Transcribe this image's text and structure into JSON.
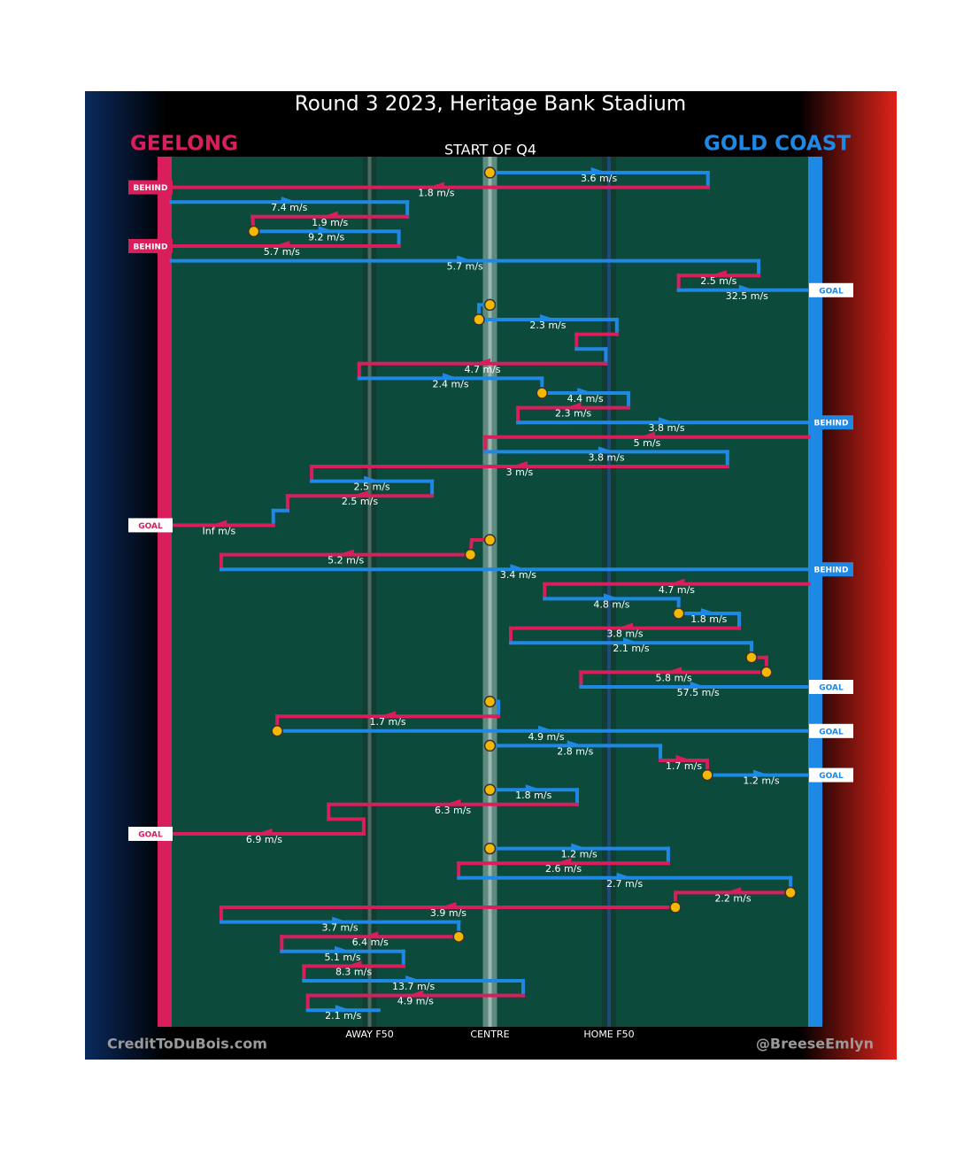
{
  "title": "Round 3 2023, Heritage Bank Stadium",
  "teams": [
    {
      "name": "GEELONG",
      "color": "#d81e5b"
    },
    {
      "name": "GOLD COAST",
      "color": "#1e88e5"
    }
  ],
  "subtitle": "START OF Q4",
  "field_lines": [
    {
      "label": "AWAY F50",
      "x": 31.5
    },
    {
      "label": "CENTRE",
      "x": 50
    },
    {
      "label": "HOME F50",
      "x": 68.3
    }
  ],
  "credit_left": "CreditToDuBois.com",
  "credit_right": "@BreeseEmlyn",
  "chains": [
    {
      "moves": [
        {
          "color": "#1e88e5",
          "from": 50,
          "to": 83.5,
          "label": "3.6 m/s",
          "stoppage": true
        },
        {
          "color": "#d81e5b",
          "from": 83.5,
          "to": 0,
          "label": "1.8 m/s"
        }
      ],
      "outcome": "BEHIND"
    },
    {
      "moves": [
        {
          "color": "#1e88e5",
          "from": 1,
          "to": 37.3,
          "label": "7.4 m/s"
        },
        {
          "color": "#d81e5b",
          "from": 37.3,
          "to": 13.5,
          "label": "1.9 m/s"
        },
        {
          "color": "#1e88e5",
          "from": 13.7,
          "to": 36,
          "label": "9.2 m/s",
          "stoppage": true
        },
        {
          "color": "#d81e5b",
          "from": 36,
          "to": 0,
          "label": "5.7 m/s"
        }
      ],
      "outcome": "BEHIND"
    },
    {
      "moves": [
        {
          "color": "#1e88e5",
          "from": 1,
          "to": 91.3,
          "label": "5.7 m/s"
        },
        {
          "color": "#d81e5b",
          "from": 91.3,
          "to": 79,
          "label": "2.5 m/s"
        },
        {
          "color": "#1e88e5",
          "from": 79,
          "to": 100,
          "label": "32.5 m/s"
        }
      ],
      "outcome": "GOAL"
    },
    {
      "moves": [
        {
          "color": "#1e88e5",
          "from": 50,
          "to": 48.3,
          "stoppage": true
        },
        {
          "color": "#1e88e5",
          "from": 48.3,
          "to": 69.5,
          "label": "2.3 m/s",
          "stoppage": true
        },
        {
          "color": "#d81e5b",
          "from": 69.5,
          "to": 63.3
        },
        {
          "color": "#1e88e5",
          "from": 63.3,
          "to": 67.8
        },
        {
          "color": "#d81e5b",
          "from": 67.8,
          "to": 29.9,
          "label": "4.7 m/s"
        },
        {
          "color": "#1e88e5",
          "from": 29.9,
          "to": 58,
          "label": "2.4 m/s"
        },
        {
          "color": "#1e88e5",
          "from": 58,
          "to": 71.3,
          "label": "4.4 m/s",
          "stoppage": true
        },
        {
          "color": "#d81e5b",
          "from": 71.3,
          "to": 54.3,
          "label": "2.3 m/s"
        },
        {
          "color": "#1e88e5",
          "from": 54.3,
          "to": 100,
          "label": "3.8 m/s"
        }
      ],
      "outcome": "BEHIND"
    },
    {
      "moves": [
        {
          "color": "#d81e5b",
          "from": 99,
          "to": 49.3,
          "label": "5 m/s"
        },
        {
          "color": "#1e88e5",
          "from": 49.3,
          "to": 86.5,
          "label": "3.8 m/s"
        },
        {
          "color": "#d81e5b",
          "from": 86.5,
          "to": 22.6,
          "label": "3 m/s"
        },
        {
          "color": "#1e88e5",
          "from": 22.6,
          "to": 41.1,
          "label": "2.5 m/s"
        },
        {
          "color": "#d81e5b",
          "from": 41.1,
          "to": 18.9,
          "label": "2.5 m/s"
        },
        {
          "color": "#1e88e5",
          "from": 18.9,
          "to": 16.7
        },
        {
          "color": "#d81e5b",
          "from": 16.7,
          "to": 0,
          "label": "Inf m/s"
        }
      ],
      "outcome": "GOAL"
    },
    {
      "moves": [
        {
          "color": "#d81e5b",
          "from": 50,
          "to": 47.2,
          "stoppage": true
        },
        {
          "color": "#d81e5b",
          "from": 47,
          "to": 8.7,
          "label": "5.2 m/s",
          "stoppage": true
        },
        {
          "color": "#1e88e5",
          "from": 8.7,
          "to": 100,
          "label": "3.4 m/s"
        }
      ],
      "outcome": "BEHIND"
    },
    {
      "moves": [
        {
          "color": "#d81e5b",
          "from": 99,
          "to": 58.4,
          "label": "4.7 m/s"
        },
        {
          "color": "#1e88e5",
          "from": 58.4,
          "to": 79,
          "label": "4.8 m/s"
        },
        {
          "color": "#1e88e5",
          "from": 79,
          "to": 88.3,
          "label": "1.8 m/s",
          "stoppage": true
        },
        {
          "color": "#d81e5b",
          "from": 88.3,
          "to": 53.2,
          "label": "3.8 m/s"
        },
        {
          "color": "#1e88e5",
          "from": 53.2,
          "to": 90.2,
          "label": "2.1 m/s"
        },
        {
          "color": "#d81e5b",
          "from": 90.2,
          "to": 92.5,
          "stoppage": true
        },
        {
          "color": "#d81e5b",
          "from": 92.5,
          "to": 64,
          "label": "5.8 m/s",
          "stoppage": true
        },
        {
          "color": "#1e88e5",
          "from": 64,
          "to": 100,
          "label": "57.5 m/s"
        }
      ],
      "outcome": "GOAL"
    },
    {
      "moves": [
        {
          "color": "#1e88e5",
          "from": 50,
          "to": 51.3,
          "stoppage": true
        },
        {
          "color": "#d81e5b",
          "from": 51.3,
          "to": 17.3,
          "label": "1.7 m/s"
        },
        {
          "color": "#1e88e5",
          "from": 17.3,
          "to": 100,
          "label": "4.9 m/s",
          "stoppage": true
        }
      ],
      "outcome": "GOAL"
    },
    {
      "moves": [
        {
          "color": "#1e88e5",
          "from": 50,
          "to": 76.2,
          "label": "2.8 m/s",
          "stoppage": true
        },
        {
          "color": "#d81e5b",
          "from": 76.2,
          "to": 83.4,
          "label": "1.7 m/s"
        },
        {
          "color": "#1e88e5",
          "from": 83.4,
          "to": 100,
          "label": "1.2 m/s",
          "stoppage": true
        }
      ],
      "outcome": "GOAL"
    },
    {
      "moves": [
        {
          "color": "#1e88e5",
          "from": 50,
          "to": 63.4,
          "label": "1.8 m/s",
          "stoppage": true
        },
        {
          "color": "#d81e5b",
          "from": 63.4,
          "to": 25.2,
          "label": "6.3 m/s"
        },
        {
          "color": "#d81e5b",
          "from": 25.2,
          "to": 30.6
        },
        {
          "color": "#d81e5b",
          "from": 30.6,
          "to": 0,
          "label": "6.9 m/s"
        }
      ],
      "outcome": "GOAL"
    },
    {
      "moves": [
        {
          "color": "#1e88e5",
          "from": 50,
          "to": 77.4,
          "label": "1.2 m/s",
          "stoppage": true
        },
        {
          "color": "#d81e5b",
          "from": 77.4,
          "to": 45.2,
          "label": "2.6 m/s"
        },
        {
          "color": "#1e88e5",
          "from": 45.2,
          "to": 96.2,
          "label": "2.7 m/s"
        },
        {
          "color": "#d81e5b",
          "from": 96.2,
          "to": 78.5,
          "label": "2.2 m/s",
          "stoppage": true
        },
        {
          "color": "#d81e5b",
          "from": 78.5,
          "to": 8.7,
          "label": "3.9 m/s",
          "stoppage": true
        },
        {
          "color": "#1e88e5",
          "from": 8.7,
          "to": 45.2,
          "label": "3.7 m/s"
        },
        {
          "color": "#d81e5b",
          "from": 45.2,
          "to": 18,
          "label": "6.4 m/s",
          "stoppage": true
        },
        {
          "color": "#1e88e5",
          "from": 18,
          "to": 36.7,
          "label": "5.1 m/s"
        },
        {
          "color": "#d81e5b",
          "from": 36.7,
          "to": 21.4,
          "label": "8.3 m/s"
        },
        {
          "color": "#1e88e5",
          "from": 21.4,
          "to": 55.1,
          "label": "13.7 m/s"
        },
        {
          "color": "#d81e5b",
          "from": 55.1,
          "to": 22,
          "label": "4.9 m/s"
        },
        {
          "color": "#1e88e5",
          "from": 22,
          "to": 32.9,
          "label": "2.1 m/s"
        }
      ]
    }
  ]
}
